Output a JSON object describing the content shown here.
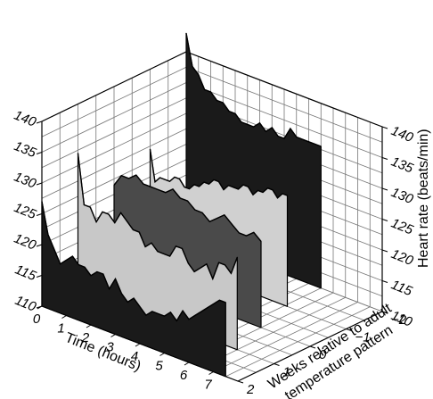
{
  "chart_data": {
    "type": "area",
    "subtype": "3d-waterfall",
    "title": "",
    "xlabel": "Time (hours)",
    "ylabel_parts": [
      "Weeks relative to adult",
      "temperature pattern"
    ],
    "zlabel": "Heart rate (beats/min)",
    "x": [
      0,
      1,
      2,
      3,
      4,
      5,
      6,
      7
    ],
    "x_ticks": [
      "0",
      "1",
      "2",
      "3",
      "4",
      "5",
      "6",
      "7"
    ],
    "y_ticks": [
      "2",
      "1",
      "0",
      "−1",
      "−2"
    ],
    "z_ticks": [
      "110",
      "115",
      "120",
      "125",
      "130",
      "135",
      "140"
    ],
    "zlim": [
      110,
      140
    ],
    "grid": true,
    "series": [
      {
        "week": 2,
        "color": "#1a1a1a",
        "x": [
          0,
          0.25,
          0.5,
          0.75,
          1,
          1.25,
          1.5,
          1.75,
          2,
          2.25,
          2.5,
          2.75,
          3,
          3.25,
          3.5,
          3.75,
          4,
          4.25,
          4.5,
          4.75,
          5,
          5.25,
          5.5,
          5.75,
          6,
          6.25,
          6.5,
          6.75,
          7,
          7.25,
          7.5
        ],
        "values": [
          127,
          122,
          120,
          118,
          119,
          120,
          119,
          119,
          118,
          119,
          119,
          117,
          119,
          117,
          116,
          117,
          116,
          115,
          116,
          116,
          116,
          117,
          116,
          118,
          117,
          118,
          119,
          120,
          121,
          122,
          122
        ]
      },
      {
        "week": 1,
        "color": "#c8c8c8",
        "x": [
          0,
          0.25,
          0.5,
          0.75,
          1,
          1.25,
          1.5,
          1.75,
          2,
          2.25,
          2.5,
          2.75,
          3,
          3.25,
          3.5,
          3.75,
          4,
          4.25,
          4.5,
          4.75,
          5,
          5.25,
          5.5,
          5.75,
          6,
          6.25,
          6.5
        ],
        "values": [
          132,
          124,
          124,
          122,
          124,
          124,
          123,
          125,
          124,
          123,
          123,
          121,
          122,
          121,
          121,
          121,
          123,
          123,
          121,
          120,
          121,
          122,
          120,
          123,
          123,
          122,
          125
        ]
      },
      {
        "week": 0,
        "color": "#4a4a4a",
        "x": [
          0,
          0.3,
          0.6,
          0.9,
          1.2,
          1.5,
          1.8,
          2.1,
          2.4,
          2.7,
          3,
          3.3,
          3.6,
          3.9,
          4.2,
          4.5,
          4.8,
          5.1,
          5.4,
          5.7,
          6
        ],
        "values": [
          124,
          126,
          126,
          127,
          126,
          126,
          126,
          126,
          127,
          126,
          126,
          125,
          125,
          124,
          125,
          126,
          125,
          124,
          124,
          125,
          124
        ]
      },
      {
        "week": -1,
        "color": "#d0d0d0",
        "x": [
          0,
          0.2,
          0.4,
          0.6,
          0.8,
          1,
          1.2,
          1.4,
          1.6,
          1.8,
          2,
          2.2,
          2.4,
          2.6,
          2.8,
          3,
          3.2,
          3.4,
          3.6,
          3.8,
          4,
          4.2,
          4.4,
          4.6,
          4.8,
          5,
          5.2,
          5.4,
          5.6
        ],
        "values": [
          127,
          122,
          123,
          123,
          123,
          124,
          124,
          123,
          123,
          124,
          124,
          125,
          125,
          126,
          126,
          125,
          126,
          126,
          126,
          127,
          127,
          126,
          127,
          127,
          128,
          128,
          127,
          128,
          128
        ]
      },
      {
        "week": -2,
        "color": "#1a1a1a",
        "x": [
          0,
          0.25,
          0.5,
          0.75,
          1,
          1.25,
          1.5,
          1.75,
          2,
          2.25,
          2.5,
          2.75,
          3,
          3.25,
          3.5,
          3.75,
          4,
          4.25,
          4.5,
          4.75,
          5,
          5.25,
          5.5
        ],
        "values": [
          143,
          138,
          137,
          135,
          135,
          134,
          134,
          133,
          133,
          132,
          132,
          132,
          133,
          132,
          133,
          132,
          132,
          134,
          133,
          133,
          133,
          133,
          133
        ]
      }
    ]
  }
}
